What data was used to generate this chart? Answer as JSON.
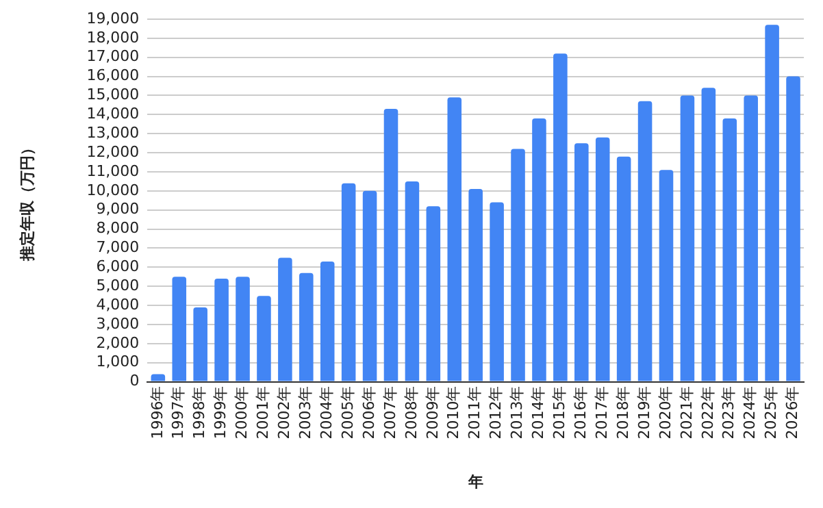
{
  "chart_data": {
    "type": "bar",
    "xlabel": "年",
    "ylabel": "推定年収（万円）",
    "categories": [
      "1996年",
      "1997年",
      "1998年",
      "1999年",
      "2000年",
      "2001年",
      "2002年",
      "2003年",
      "2004年",
      "2005年",
      "2006年",
      "2007年",
      "2008年",
      "2009年",
      "2010年",
      "2011年",
      "2012年",
      "2013年",
      "2014年",
      "2015年",
      "2016年",
      "2017年",
      "2018年",
      "2019年",
      "2020年",
      "2021年",
      "2022年",
      "2023年",
      "2024年",
      "2025年",
      "2026年"
    ],
    "values": [
      400,
      5500,
      3900,
      5400,
      5500,
      4500,
      6500,
      5700,
      6300,
      10400,
      10000,
      14300,
      10500,
      9200,
      14900,
      10100,
      9400,
      12200,
      13800,
      17200,
      12500,
      12800,
      11800,
      14700,
      11100,
      15000,
      15400,
      13800,
      15000,
      18700,
      16000
    ],
    "color": "#4285f4",
    "ylim": [
      0,
      19000
    ],
    "yticks": [
      0,
      {
        "value": 1000,
        "label": "1,000"
      },
      {
        "value": 2000,
        "label": "2,000"
      },
      {
        "value": 3000,
        "label": "3,000"
      },
      {
        "value": 4000,
        "label": "4,000"
      },
      {
        "value": 5000,
        "label": "5,000"
      },
      {
        "value": 6000,
        "label": "6,000"
      },
      {
        "value": 7000,
        "label": "7,000"
      },
      {
        "value": 8000,
        "label": "8,000"
      },
      {
        "value": 9000,
        "label": "9,000"
      },
      {
        "value": 10000,
        "label": "10,000"
      },
      {
        "value": 11000,
        "label": "11,000"
      },
      {
        "value": 12000,
        "label": "12,000"
      },
      {
        "value": 13000,
        "label": "13,000"
      },
      {
        "value": 14000,
        "label": "14,000"
      },
      {
        "value": 15000,
        "label": "15,000"
      },
      {
        "value": 16000,
        "label": "16,000"
      },
      {
        "value": 17000,
        "label": "17,000"
      },
      {
        "value": 18000,
        "label": "18,000"
      },
      {
        "value": 19000,
        "label": "19,000"
      }
    ],
    "grid": "y"
  }
}
